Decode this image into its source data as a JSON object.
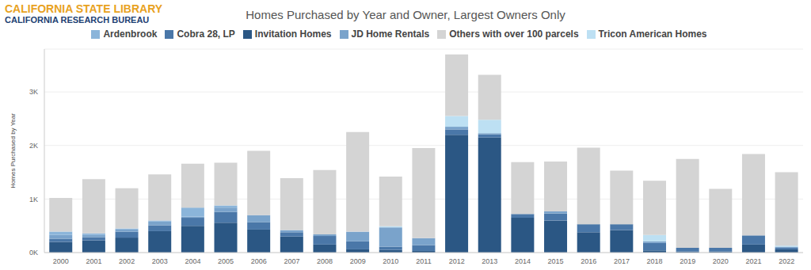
{
  "chart_data": {
    "type": "bar",
    "title": "Homes Purchased by Year and Owner, Largest Owners Only",
    "logo": [
      "CALIFORNIA STATE LIBRARY",
      "CALIFORNIA RESEARCH BUREAU"
    ],
    "y_label": "Homes Purchased by Year",
    "categories": [
      "2000",
      "2001",
      "2002",
      "2003",
      "2004",
      "2005",
      "2006",
      "2007",
      "2008",
      "2009",
      "2010",
      "2011",
      "2012",
      "2013",
      "2014",
      "2015",
      "2016",
      "2017",
      "2018",
      "2019",
      "2020",
      "2021",
      "2022"
    ],
    "series": [
      {
        "name": "Invitation Homes",
        "color": "#2b5784",
        "values": [
          200,
          230,
          280,
          400,
          500,
          560,
          430,
          300,
          150,
          60,
          50,
          30,
          2200,
          2150,
          650,
          600,
          380,
          420,
          40,
          20,
          20,
          150,
          60
        ]
      },
      {
        "name": "Cobra 28, LP",
        "color": "#4a77a8",
        "values": [
          60,
          60,
          110,
          110,
          150,
          200,
          140,
          80,
          160,
          150,
          60,
          110,
          100,
          60,
          70,
          130,
          150,
          110,
          140,
          70,
          70,
          170,
          30
        ]
      },
      {
        "name": "JD Home Rentals",
        "color": "#7aa3cb",
        "values": [
          70,
          40,
          40,
          70,
          20,
          80,
          130,
          40,
          30,
          180,
          360,
          130,
          50,
          20,
          0,
          40,
          0,
          0,
          30,
          0,
          0,
          0,
          20
        ]
      },
      {
        "name": "Ardenbrook",
        "color": "#8bb5da",
        "values": [
          60,
          30,
          20,
          20,
          170,
          40,
          0,
          0,
          0,
          0,
          0,
          0,
          0,
          0,
          0,
          0,
          0,
          0,
          0,
          0,
          0,
          0,
          0
        ]
      },
      {
        "name": "Tricon American Homes",
        "color": "#bde0f3",
        "values": [
          0,
          0,
          0,
          0,
          0,
          0,
          0,
          0,
          0,
          0,
          20,
          0,
          200,
          250,
          0,
          0,
          0,
          0,
          120,
          0,
          0,
          0,
          20
        ]
      },
      {
        "name": "Others with over 100 parcels",
        "color": "#d4d4d4",
        "values": [
          630,
          1010,
          750,
          860,
          820,
          800,
          1200,
          970,
          1200,
          1860,
          930,
          1680,
          1150,
          840,
          970,
          930,
          1430,
          1000,
          1010,
          1660,
          1100,
          1520,
          1370
        ]
      }
    ],
    "ylim": [
      0,
      3800
    ],
    "yticks": [
      {
        "value": 0,
        "label": "0K"
      },
      {
        "value": 1000,
        "label": "1K"
      },
      {
        "value": 2000,
        "label": "2K"
      },
      {
        "value": 3000,
        "label": "3K"
      }
    ],
    "stacked": true,
    "grid": true,
    "legend": "top"
  }
}
